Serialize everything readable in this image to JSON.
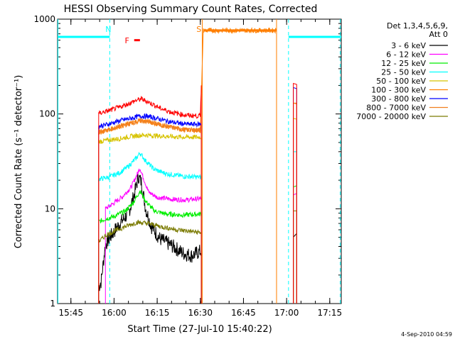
{
  "chart_data": {
    "type": "line",
    "title": "HESSI Observing Summary Count Rates, Corrected",
    "xlabel": "Start Time (27-Jul-10 15:40:22)",
    "ylabel": "Corrected Count Rate (s⁻¹ detector⁻¹)",
    "y_scale": "log",
    "ylim": [
      1,
      1000
    ],
    "xlim": [
      "15:40:22",
      "17:19:00"
    ],
    "y_ticks": [
      {
        "value": 1,
        "label": "1"
      },
      {
        "value": 10,
        "label": "10"
      },
      {
        "value": 100,
        "label": "100"
      },
      {
        "value": 1000,
        "label": "1000"
      }
    ],
    "x_ticks": [
      {
        "time": "15:45",
        "label": "15:45"
      },
      {
        "time": "16:00",
        "label": "16:00"
      },
      {
        "time": "16:15",
        "label": "16:15"
      },
      {
        "time": "16:30",
        "label": "16:30"
      },
      {
        "time": "16:45",
        "label": "16:45"
      },
      {
        "time": "17:00",
        "label": "17:00"
      },
      {
        "time": "17:15",
        "label": "17:15"
      }
    ],
    "legend": {
      "placement": "right",
      "header": [
        "Det 1,3,4,5,6,9,",
        "Att 0"
      ]
    },
    "series": [
      {
        "name": "3 - 6 keV",
        "color": "#000000",
        "segments": [
          {
            "points": [
              [
                "15:54:40",
                1.5
              ],
              [
                "15:55:30",
                1.7
              ],
              [
                "15:57:00",
                4.2
              ],
              [
                "15:59:00",
                5.2
              ],
              [
                "16:02:00",
                7
              ],
              [
                "16:05:00",
                9
              ],
              [
                "16:07:00",
                14
              ],
              [
                "16:08:30",
                22
              ],
              [
                "16:09:30",
                19
              ],
              [
                "16:11:00",
                10
              ],
              [
                "16:13:00",
                6.5
              ],
              [
                "16:16:00",
                4.8
              ],
              [
                "16:20:00",
                4.1
              ],
              [
                "16:24:00",
                3.4
              ],
              [
                "16:27:00",
                3.2
              ],
              [
                "16:30:20",
                3.6
              ]
            ]
          },
          {
            "points": [
              [
                "17:02:20",
                5
              ],
              [
                "17:03:30",
                5.5
              ]
            ]
          }
        ]
      },
      {
        "name": "6 - 12 keV",
        "color": "#ff00ff",
        "segments": [
          {
            "points": [
              [
                "15:57:00",
                10
              ],
              [
                "16:00:00",
                11.5
              ],
              [
                "16:03:00",
                13.5
              ],
              [
                "16:06:00",
                17
              ],
              [
                "16:08:00",
                23
              ],
              [
                "16:09:00",
                27
              ],
              [
                "16:10:00",
                22
              ],
              [
                "16:12:00",
                15
              ],
              [
                "16:15:00",
                13.2
              ],
              [
                "16:20:00",
                12.6
              ],
              [
                "16:25:00",
                12.4
              ],
              [
                "16:30:20",
                12.8
              ]
            ]
          },
          {
            "points": [
              [
                "17:02:20",
                14
              ],
              [
                "17:03:30",
                14.5
              ]
            ]
          }
        ]
      },
      {
        "name": "12 - 25 keV",
        "color": "#00ee00",
        "segments": [
          {
            "points": [
              [
                "15:54:40",
                7.3
              ],
              [
                "15:57:00",
                7.8
              ],
              [
                "16:00:00",
                8.3
              ],
              [
                "16:04:00",
                9.5
              ],
              [
                "16:07:00",
                12
              ],
              [
                "16:09:00",
                15.5
              ],
              [
                "16:11:00",
                12
              ],
              [
                "16:14:00",
                9.5
              ],
              [
                "16:18:00",
                8.8
              ],
              [
                "16:24:00",
                8.6
              ],
              [
                "16:30:20",
                8.8
              ]
            ]
          },
          {
            "points": [
              [
                "17:02:20",
                17
              ],
              [
                "17:03:30",
                17.5
              ]
            ]
          }
        ]
      },
      {
        "name": "25 - 50 keV",
        "color": "#00ffff",
        "segments": [
          {
            "points": [
              [
                "15:54:40",
                20.5
              ],
              [
                "15:58:00",
                21.5
              ],
              [
                "16:02:00",
                24
              ],
              [
                "16:05:00",
                28
              ],
              [
                "16:08:00",
                35
              ],
              [
                "16:09:00",
                39
              ],
              [
                "16:11:00",
                32
              ],
              [
                "16:14:00",
                26
              ],
              [
                "16:18:00",
                23.5
              ],
              [
                "16:24:00",
                22
              ],
              [
                "16:30:20",
                21.5
              ]
            ]
          },
          {
            "points": [
              [
                "17:02:20",
                40
              ],
              [
                "17:03:30",
                40
              ]
            ]
          }
        ]
      },
      {
        "name": "50 - 100 keV",
        "color": "#d7c300",
        "segments": [
          {
            "points": [
              [
                "15:54:40",
                51
              ],
              [
                "15:58:00",
                53
              ],
              [
                "16:02:00",
                55
              ],
              [
                "16:06:00",
                58
              ],
              [
                "16:10:00",
                60
              ],
              [
                "16:14:00",
                59
              ],
              [
                "16:18:00",
                58
              ],
              [
                "16:24:00",
                57
              ],
              [
                "16:30:20",
                57
              ]
            ]
          },
          {
            "points": [
              [
                "17:02:20",
                90
              ],
              [
                "17:03:30",
                88
              ]
            ]
          }
        ]
      },
      {
        "name": "100 - 300 keV",
        "color": "#ff7f00",
        "segments": [
          {
            "points": [
              [
                "15:54:40",
                64
              ],
              [
                "15:58:00",
                68
              ],
              [
                "16:02:00",
                74
              ],
              [
                "16:06:00",
                80
              ],
              [
                "16:09:00",
                85
              ],
              [
                "16:12:00",
                83
              ],
              [
                "16:16:00",
                77
              ],
              [
                "16:20:00",
                72
              ],
              [
                "16:25:00",
                68
              ],
              [
                "16:30:00",
                67
              ],
              [
                "16:30:30",
                210
              ],
              [
                "16:31:00",
                760
              ],
              [
                "16:56:30",
                760
              ]
            ]
          },
          {
            "points": [
              [
                "17:02:20",
                130
              ],
              [
                "17:03:30",
                130
              ]
            ]
          }
        ]
      },
      {
        "name": "300 - 800 keV",
        "color": "#0000ff",
        "segments": [
          {
            "points": [
              [
                "15:54:40",
                74
              ],
              [
                "15:58:00",
                78
              ],
              [
                "16:02:00",
                85
              ],
              [
                "16:06:00",
                90
              ],
              [
                "16:09:00",
                95
              ],
              [
                "16:12:00",
                94
              ],
              [
                "16:16:00",
                88
              ],
              [
                "16:20:00",
                82
              ],
              [
                "16:25:00",
                78
              ],
              [
                "16:30:20",
                78
              ]
            ]
          },
          {
            "points": [
              [
                "17:02:20",
                190
              ],
              [
                "17:03:30",
                185
              ]
            ]
          }
        ]
      },
      {
        "name": "800 - 7000 keV",
        "color": "#f08020",
        "segments": [
          {
            "points": [
              [
                "15:54:40",
                64
              ],
              [
                "15:58:00",
                68
              ],
              [
                "16:02:00",
                74
              ],
              [
                "16:06:00",
                80
              ],
              [
                "16:09:00",
                85
              ],
              [
                "16:12:00",
                83
              ],
              [
                "16:16:00",
                77
              ],
              [
                "16:20:00",
                72
              ],
              [
                "16:25:00",
                68
              ],
              [
                "16:30:20",
                68
              ]
            ]
          },
          {
            "points": [
              [
                "17:02:20",
                130
              ],
              [
                "17:03:30",
                128
              ]
            ]
          }
        ]
      },
      {
        "name": "7000 - 20000 keV",
        "color": "#7a7a00",
        "segments": [
          {
            "points": [
              [
                "15:54:40",
                4.5
              ],
              [
                "15:57:00",
                5.2
              ],
              [
                "16:00:00",
                5.8
              ],
              [
                "16:04:00",
                6.5
              ],
              [
                "16:08:00",
                7.2
              ],
              [
                "16:12:00",
                7
              ],
              [
                "16:16:00",
                6.5
              ],
              [
                "16:22:00",
                6
              ],
              [
                "16:30:20",
                5.6
              ]
            ]
          },
          {
            "points": [
              [
                "17:02:20",
                9.5
              ],
              [
                "17:03:30",
                9.5
              ]
            ]
          }
        ]
      },
      {
        "color": "#ff0000",
        "segments": [
          {
            "points": [
              [
                "15:54:40",
                101
              ],
              [
                "15:58:00",
                108
              ],
              [
                "16:02:00",
                118
              ],
              [
                "16:06:00",
                132
              ],
              [
                "16:08:00",
                140
              ],
              [
                "16:09:30",
                144
              ],
              [
                "16:12:00",
                133
              ],
              [
                "16:16:00",
                115
              ],
              [
                "16:20:00",
                104
              ],
              [
                "16:25:00",
                97
              ],
              [
                "16:30:00",
                95
              ],
              [
                "16:30:20",
                200
              ]
            ]
          },
          {
            "points": [
              [
                "17:02:20",
                210
              ],
              [
                "17:03:30",
                205
              ]
            ]
          }
        ]
      }
    ],
    "annotations": [
      {
        "text": "N",
        "time": "15:58:00",
        "color": "#00ffff"
      },
      {
        "text": "F",
        "time": "16:04:30",
        "color": "#ff0000"
      },
      {
        "text": "S",
        "time": "16:29:30",
        "color": "#ff7f00"
      }
    ],
    "flags": [
      {
        "kind": "night",
        "color": "#00ffff",
        "level": 650,
        "ranges": [
          [
            "15:40:22",
            "15:58:30"
          ],
          [
            "17:00:40",
            "17:19:00"
          ]
        ]
      },
      {
        "kind": "flare",
        "color": "#ff0000",
        "level": 600,
        "ranges": [
          [
            "16:07:00",
            "16:09:00"
          ]
        ]
      },
      {
        "kind": "saa",
        "color": "#ff7f00",
        "level": 760,
        "ranges": [
          [
            "16:31:00",
            "16:56:30"
          ]
        ]
      }
    ],
    "vertical_markers": [
      {
        "time": "15:40:30",
        "color": "#00ffff",
        "style": "solid"
      },
      {
        "time": "15:58:30",
        "color": "#00ffff",
        "style": "dashed"
      },
      {
        "time": "16:30:40",
        "color": "#ff7f00",
        "style": "solid"
      },
      {
        "time": "16:56:30",
        "color": "#ff7f00",
        "style": "solid"
      },
      {
        "time": "17:00:40",
        "color": "#00ffff",
        "style": "dashed"
      },
      {
        "time": "17:18:40",
        "color": "#00ffff",
        "style": "dashed"
      }
    ],
    "grid": false
  },
  "footer": {
    "timestamp": "4-Sep-2010 04:59"
  }
}
